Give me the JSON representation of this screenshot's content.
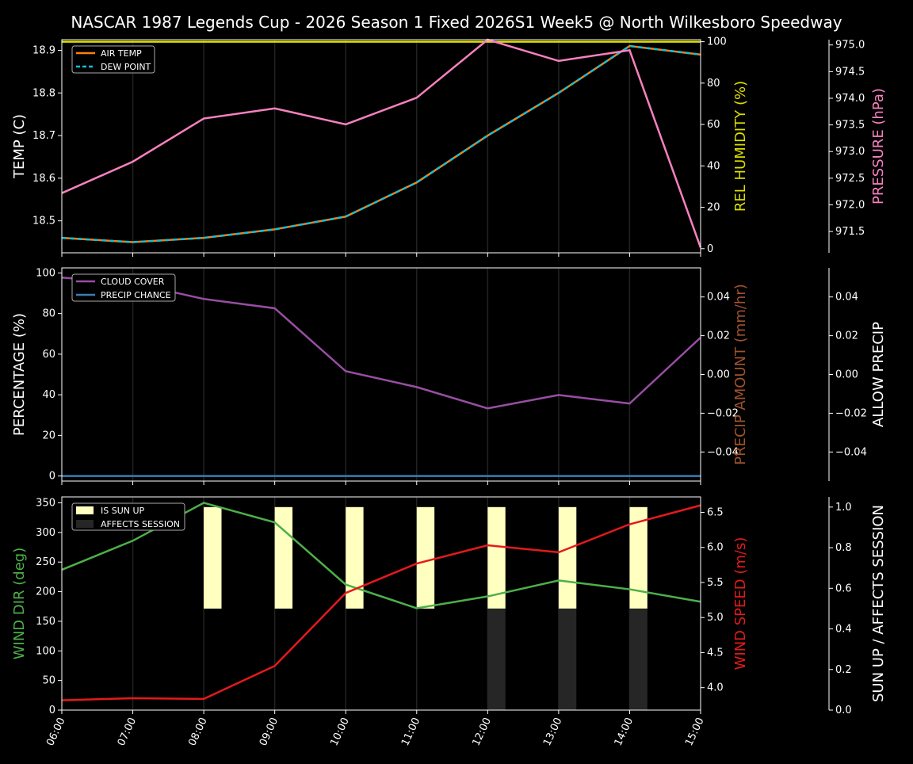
{
  "title": "NASCAR 1987 Legends Cup  - 2026 Season 1 Fixed 2026S1 Week5 @ North Wilkesboro Speedway",
  "chart_data": [
    {
      "type": "line",
      "x": [
        "06:00",
        "07:00",
        "08:00",
        "09:00",
        "10:00",
        "11:00",
        "12:00",
        "13:00",
        "14:00",
        "15:00"
      ],
      "ylabel": "TEMP (C)",
      "ylabel_right": "REL HUMIDITY (%)",
      "ylabel_right2": "PRESSURE (hPa)",
      "yticks": [
        18.5,
        18.6,
        18.7,
        18.8,
        18.9
      ],
      "yticks_right": [
        0,
        20,
        40,
        60,
        80,
        100
      ],
      "yticks_right2": [
        "971.5",
        "972.0",
        "972.5",
        "973.0",
        "973.5",
        "974.0",
        "974.5",
        "975.0"
      ],
      "ylim": [
        18.425,
        18.925
      ],
      "ylim_right": [
        -2,
        101
      ],
      "ylim_right2": [
        971.1,
        975.1
      ],
      "legend": "top-left",
      "series": [
        {
          "name": "AIR TEMP",
          "axis": "left",
          "color": "#ff7f0e",
          "dash": false,
          "values": [
            18.46,
            18.45,
            18.46,
            18.48,
            18.51,
            18.59,
            18.7,
            18.8,
            18.91,
            18.89
          ]
        },
        {
          "name": "DEW POINT",
          "axis": "left",
          "color": "#17becf",
          "dash": true,
          "values": [
            18.46,
            18.45,
            18.46,
            18.48,
            18.51,
            18.59,
            18.7,
            18.8,
            18.91,
            18.89
          ]
        },
        {
          "axis": "right",
          "color": "#dddd00",
          "values": [
            100,
            100,
            100,
            100,
            100,
            100,
            100,
            100,
            100,
            100
          ]
        },
        {
          "axis": "right2",
          "color": "#f781bf",
          "values": [
            972.22,
            972.81,
            973.62,
            973.81,
            973.51,
            974.01,
            975.1,
            974.7,
            974.9,
            971.2
          ]
        }
      ],
      "label_colors": {
        "left": "#ffffff",
        "right": "#dddd00",
        "right2": "#f781bf"
      }
    },
    {
      "type": "line",
      "x": [
        "06:00",
        "07:00",
        "08:00",
        "09:00",
        "10:00",
        "11:00",
        "12:00",
        "13:00",
        "14:00",
        "15:00"
      ],
      "ylabel": "PERCENTAGE (%)",
      "ylabel_right": "PRECIP AMOUNT (mm/hr)",
      "ylabel_right2": "ALLOW PRECIP",
      "yticks": [
        0,
        20,
        40,
        60,
        80,
        100
      ],
      "yticks_right": [
        "−0.04",
        "−0.02",
        "0.00",
        "0.02",
        "0.04"
      ],
      "yticks_right2": [
        "−0.04",
        "−0.02",
        "0.00",
        "0.02",
        "0.04"
      ],
      "ylim": [
        -2.5,
        102.5
      ],
      "ylim_right": [
        -0.055,
        0.055
      ],
      "ylim_right2": [
        -0.055,
        0.055
      ],
      "legend": "top-left",
      "series": [
        {
          "name": "CLOUD COVER",
          "axis": "left",
          "color": "#984ea3",
          "values": [
            97.7,
            95,
            87.2,
            82.6,
            51.6,
            43.8,
            33.3,
            39.9,
            35.7,
            68.2
          ]
        },
        {
          "name": "PRECIP CHANCE",
          "axis": "left",
          "color": "#377eb8",
          "values": [
            0,
            0,
            0,
            0,
            0,
            0,
            0,
            0,
            0,
            0
          ]
        }
      ],
      "label_colors": {
        "left": "#ffffff",
        "right": "#a0522d",
        "right2": "#ffffff"
      }
    },
    {
      "type": "line+bar",
      "x": [
        "06:00",
        "07:00",
        "08:00",
        "09:00",
        "10:00",
        "11:00",
        "12:00",
        "13:00",
        "14:00",
        "15:00"
      ],
      "ylabel": "WIND DIR (deg)",
      "ylabel_right": "WIND SPEED (m/s)",
      "ylabel_right2": "SUN UP / AFFECTS SESSION",
      "yticks": [
        0,
        50,
        100,
        150,
        200,
        250,
        300,
        350
      ],
      "yticks_right": [
        "4.0",
        "4.5",
        "5.0",
        "5.5",
        "6.0",
        "6.5"
      ],
      "yticks_right2": [
        "0.0",
        "0.2",
        "0.4",
        "0.6",
        "0.8",
        "1.0"
      ],
      "ylim": [
        0,
        360
      ],
      "ylim_right": [
        3.68,
        6.72
      ],
      "ylim_right2": [
        0,
        1.05
      ],
      "legend": "top-left",
      "series": [
        {
          "axis": "left",
          "color": "#4daf4a",
          "values": [
            237,
            286,
            350,
            317,
            212,
            172,
            192,
            219,
            204,
            183
          ]
        },
        {
          "axis": "right",
          "color": "#e41a1c",
          "values": [
            3.82,
            3.85,
            3.84,
            4.31,
            5.35,
            5.77,
            6.03,
            5.93,
            6.33,
            6.6
          ]
        }
      ],
      "bars": [
        {
          "name": "IS SUN UP",
          "color": "#ffffc0",
          "values": [
            0,
            0,
            1,
            1,
            1,
            1,
            1,
            1,
            1,
            0
          ]
        },
        {
          "name": "AFFECTS SESSION",
          "color": "#262626",
          "values": [
            0,
            0,
            0,
            0,
            0,
            0,
            1,
            1,
            1,
            0
          ]
        }
      ],
      "label_colors": {
        "left": "#4daf4a",
        "right": "#e41a1c",
        "right2": "#ffffff"
      }
    }
  ]
}
